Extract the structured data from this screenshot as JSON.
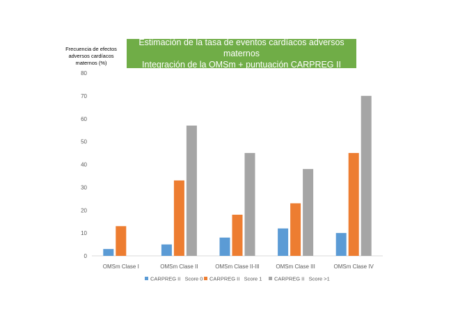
{
  "chart_data": {
    "type": "bar",
    "title_lines": [
      "Estimación de la tasa de eventos cardíacos adversos maternos",
      "Integración de la OMSm + puntuación CARPREG II"
    ],
    "ylabel_lines": [
      "Frecuencia de efectos",
      "adversos cardíacos",
      "maternos (%)"
    ],
    "xlabel": "",
    "ylim": [
      0,
      80
    ],
    "yticks": [
      0,
      10,
      20,
      30,
      40,
      50,
      60,
      70,
      80
    ],
    "categories": [
      "OMSm Clase I",
      "OMSm Clase II",
      "OMSm Clase II-III",
      "OMSm Clase III",
      "OMSm Clase IV"
    ],
    "series": [
      {
        "name": "CARPREG II   Score 0",
        "color": "#5b9bd5",
        "values": [
          3,
          5,
          8,
          12,
          10
        ]
      },
      {
        "name": "CARPREG II   Score 1",
        "color": "#ed7d31",
        "values": [
          13,
          33,
          18,
          23,
          45
        ]
      },
      {
        "name": "CARPREG II   Score >1",
        "color": "#a5a5a5",
        "values": [
          0,
          57,
          45,
          38,
          70
        ]
      }
    ],
    "grid": false,
    "legend_position": "bottom"
  }
}
